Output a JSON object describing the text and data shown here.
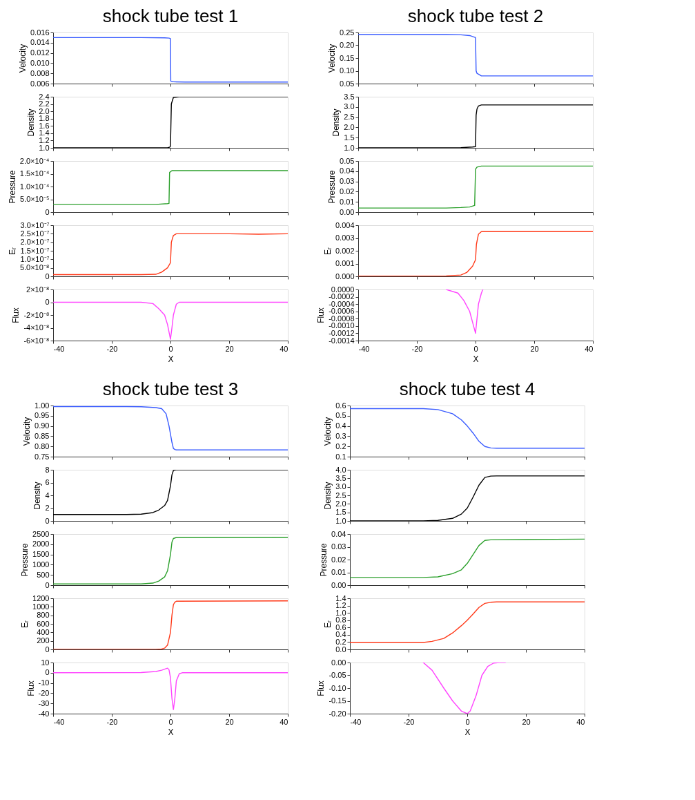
{
  "chart_data": [
    {
      "type": "line",
      "title": "shock tube test 1",
      "ylabel": "Velocity",
      "x": [
        -40,
        -10,
        -2,
        -0.5,
        0,
        0.1,
        1,
        5,
        40
      ],
      "series": [
        {
          "color": "#3a5cff",
          "values": [
            0.015,
            0.015,
            0.01495,
            0.0149,
            0.0148,
            0.0065,
            0.00635,
            0.0063,
            0.0063
          ]
        }
      ],
      "xlim": [
        -40,
        40
      ],
      "xticks": [
        -40,
        -20,
        0,
        20,
        40
      ],
      "ylim": [
        0.006,
        0.016
      ],
      "yticks": [
        0.006,
        0.008,
        {
          "value": 0.01,
          "label": "0.010"
        },
        0.012,
        0.014,
        0.016
      ],
      "tick_labels": "y"
    },
    {
      "type": "line",
      "ylabel": "Density",
      "x": [
        -40,
        -1,
        -0.2,
        0,
        0.3,
        1,
        3,
        40
      ],
      "series": [
        {
          "color": "#000000",
          "values": [
            1.0,
            1.0,
            1.02,
            1.05,
            2.2,
            2.38,
            2.4,
            2.4
          ]
        }
      ],
      "xlim": [
        -40,
        40
      ],
      "xticks": [
        -40,
        -20,
        0,
        20,
        40
      ],
      "ylim": [
        1.0,
        2.4
      ],
      "yticks": [
        {
          "value": 1.0,
          "label": "1.0"
        },
        1.2,
        1.4,
        1.6,
        1.8,
        {
          "value": 2.0,
          "label": "2.0"
        },
        2.2,
        2.4
      ],
      "tick_labels": "y"
    },
    {
      "type": "line",
      "ylabel": "Pressure",
      "x": [
        -40,
        -5,
        -1,
        -0.5,
        -0.3,
        0.5,
        40
      ],
      "series": [
        {
          "color": "#2ca02c",
          "values": [
            3e-05,
            3e-05,
            3.3e-05,
            3.4e-05,
            0.000155,
            0.000162,
            0.000162
          ]
        }
      ],
      "xlim": [
        -40,
        40
      ],
      "xticks": [
        -40,
        -20,
        0,
        20,
        40
      ],
      "ylim": [
        0,
        0.0002
      ],
      "yticks": [
        0,
        {
          "value": 5e-05,
          "label": "5.0×10⁻⁵"
        },
        {
          "value": 0.0001,
          "label": "1.0×10⁻⁴"
        },
        {
          "value": 0.00015,
          "label": "1.5×10⁻⁴"
        },
        {
          "value": 0.0002,
          "label": "2.0×10⁻⁴"
        }
      ],
      "tick_labels": "y"
    },
    {
      "type": "line",
      "ylabel": "Eᵣ",
      "x": [
        -40,
        -10,
        -5,
        -3,
        -1,
        0,
        0.3,
        1,
        2,
        20,
        30,
        40
      ],
      "series": [
        {
          "color": "#ff3a1a",
          "values": [
            1e-08,
            1e-08,
            1.2e-08,
            2.5e-08,
            5e-08,
            8e-08,
            2e-07,
            2.4e-07,
            2.5e-07,
            2.5e-07,
            2.47e-07,
            2.5e-07
          ]
        }
      ],
      "xlim": [
        -40,
        40
      ],
      "xticks": [
        -40,
        -20,
        0,
        20,
        40
      ],
      "ylim": [
        0,
        3e-07
      ],
      "yticks": [
        0,
        {
          "value": 5e-08,
          "label": "5.0×10⁻⁸"
        },
        {
          "value": 1e-07,
          "label": "1.0×10⁻⁷"
        },
        {
          "value": 1.5e-07,
          "label": "1.5×10⁻⁷"
        },
        {
          "value": 2e-07,
          "label": "2.0×10⁻⁷"
        },
        {
          "value": 2.5e-07,
          "label": "2.5×10⁻⁷"
        },
        {
          "value": 3e-07,
          "label": "3.0×10⁻⁷"
        }
      ],
      "tick_labels": "y"
    },
    {
      "type": "line",
      "ylabel": "Flux",
      "xlabel": "X",
      "x": [
        -40,
        -10,
        -6,
        -4,
        -2,
        -1,
        0,
        0.5,
        1,
        2,
        3,
        40
      ],
      "series": [
        {
          "color": "#ff44ff",
          "values": [
            0,
            0,
            -2e-09,
            -1e-08,
            -2e-08,
            -3.5e-08,
            -5.8e-08,
            -4e-08,
            -2e-08,
            -3e-09,
            0,
            0
          ]
        }
      ],
      "xlim": [
        -40,
        40
      ],
      "xticks": [
        -40,
        -20,
        0,
        20,
        40
      ],
      "ylim": [
        -6e-08,
        2e-08
      ],
      "yticks": [
        {
          "value": -6e-08,
          "label": "-6×10⁻⁸"
        },
        {
          "value": -4e-08,
          "label": "-4×10⁻⁸"
        },
        {
          "value": -2e-08,
          "label": "-2×10⁻⁸"
        },
        0,
        {
          "value": 2e-08,
          "label": "2×10⁻⁸"
        }
      ]
    },
    {
      "type": "line",
      "title": "shock tube test 2",
      "ylabel": "Velocity",
      "x": [
        -40,
        -10,
        -5,
        -2,
        0,
        0.2,
        0.5,
        2,
        40
      ],
      "series": [
        {
          "color": "#3a5cff",
          "values": [
            0.242,
            0.242,
            0.241,
            0.238,
            0.23,
            0.1,
            0.09,
            0.08,
            0.08
          ]
        }
      ],
      "xlim": [
        -40,
        40
      ],
      "xticks": [
        -40,
        -20,
        0,
        20,
        40
      ],
      "ylim": [
        0.05,
        0.25
      ],
      "yticks": [
        0.05,
        {
          "value": 0.1,
          "label": "0.10"
        },
        0.15,
        {
          "value": 0.2,
          "label": "0.20"
        },
        0.25
      ],
      "tick_labels": "y"
    },
    {
      "type": "line",
      "ylabel": "Density",
      "x": [
        -40,
        -10,
        -5,
        -1,
        0,
        0.2,
        0.5,
        1,
        2,
        40
      ],
      "series": [
        {
          "color": "#000000",
          "values": [
            1.0,
            1.0,
            1.01,
            1.04,
            1.06,
            2.6,
            2.9,
            3.05,
            3.1,
            3.1
          ]
        }
      ],
      "xlim": [
        -40,
        40
      ],
      "xticks": [
        -40,
        -20,
        0,
        20,
        40
      ],
      "ylim": [
        1.0,
        3.5
      ],
      "yticks": [
        {
          "value": 1.0,
          "label": "1.0"
        },
        1.5,
        {
          "value": 2.0,
          "label": "2.0"
        },
        2.5,
        {
          "value": 3.0,
          "label": "3.0"
        },
        3.5
      ],
      "tick_labels": "y"
    },
    {
      "type": "line",
      "ylabel": "Pressure",
      "x": [
        -40,
        -10,
        -5,
        -2,
        -0.3,
        0,
        0.5,
        2,
        40
      ],
      "series": [
        {
          "color": "#2ca02c",
          "values": [
            0.004,
            0.004,
            0.0045,
            0.005,
            0.0065,
            0.042,
            0.044,
            0.045,
            0.045
          ]
        }
      ],
      "xlim": [
        -40,
        40
      ],
      "xticks": [
        -40,
        -20,
        0,
        20,
        40
      ],
      "ylim": [
        0,
        0.05
      ],
      "yticks": [
        {
          "value": 0,
          "label": "0.00"
        },
        0.01,
        0.02,
        0.03,
        0.04,
        0.05
      ],
      "tick_labels": "y"
    },
    {
      "type": "line",
      "ylabel": "Eᵣ",
      "x": [
        -40,
        -10,
        -5,
        -3,
        -1,
        0,
        0.3,
        1,
        2,
        40
      ],
      "series": [
        {
          "color": "#ff3a1a",
          "values": [
            2e-05,
            3e-05,
            0.0001,
            0.0003,
            0.0008,
            0.0013,
            0.0025,
            0.0033,
            0.0035,
            0.0035
          ]
        }
      ],
      "xlim": [
        -40,
        40
      ],
      "xticks": [
        -40,
        -20,
        0,
        20,
        40
      ],
      "ylim": [
        0,
        0.004
      ],
      "yticks": [
        {
          "value": 0,
          "label": "0.000"
        },
        0.001,
        0.002,
        0.003,
        0.004
      ],
      "tick_labels": "y"
    },
    {
      "type": "line",
      "ylabel": "Flux",
      "xlabel": "X",
      "x": [
        -10,
        -6,
        -4,
        -2,
        -1,
        0,
        0.5,
        1,
        2,
        2.5
      ],
      "series": [
        {
          "color": "#ff44ff",
          "values": [
            0,
            -0.0001,
            -0.0003,
            -0.0006,
            -0.0009,
            -0.0012,
            -0.0008,
            -0.0004,
            -0.0001,
            0
          ]
        }
      ],
      "xlim": [
        -40,
        40
      ],
      "xticks": [
        -40,
        -20,
        0,
        20,
        40
      ],
      "ylim": [
        -0.0014,
        0
      ],
      "yticks": [
        {
          "value": -0.0014,
          "label": "-0.0014"
        },
        {
          "value": -0.0012,
          "label": "-0.0012"
        },
        {
          "value": -0.001,
          "label": "-0.0010"
        },
        {
          "value": -0.0008,
          "label": "-0.0008"
        },
        {
          "value": -0.0006,
          "label": "-0.0006"
        },
        {
          "value": -0.0004,
          "label": "-0.0004"
        },
        {
          "value": -0.0002,
          "label": "-0.0002"
        },
        {
          "value": 0,
          "label": "0.0000"
        }
      ]
    },
    {
      "type": "line",
      "title": "shock tube test 3",
      "ylabel": "Velocity",
      "x": [
        -40,
        -15,
        -10,
        -5,
        -3,
        -1.5,
        -0.5,
        0,
        0.5,
        1,
        1.5,
        2,
        40
      ],
      "series": [
        {
          "color": "#3a5cff",
          "values": [
            0.995,
            0.995,
            0.994,
            0.99,
            0.985,
            0.96,
            0.9,
            0.86,
            0.82,
            0.79,
            0.785,
            0.783,
            0.783
          ]
        }
      ],
      "xlim": [
        -40,
        40
      ],
      "xticks": [
        -40,
        -20,
        0,
        20,
        40
      ],
      "ylim": [
        0.75,
        1.0
      ],
      "yticks": [
        0.75,
        {
          "value": 0.8,
          "label": "0.80"
        },
        0.85,
        {
          "value": 0.9,
          "label": "0.90"
        },
        0.95,
        {
          "value": 1.0,
          "label": "1.00"
        }
      ],
      "tick_labels": "y"
    },
    {
      "type": "line",
      "ylabel": "Density",
      "x": [
        -40,
        -15,
        -10,
        -6,
        -4,
        -2,
        -1,
        0,
        0.5,
        1,
        2,
        40
      ],
      "series": [
        {
          "color": "#000000",
          "values": [
            1.0,
            1.0,
            1.05,
            1.3,
            1.7,
            2.4,
            3.2,
            5.5,
            7.2,
            7.9,
            8.0,
            8.0
          ]
        }
      ],
      "xlim": [
        -40,
        40
      ],
      "xticks": [
        -40,
        -20,
        0,
        20,
        40
      ],
      "ylim": [
        0,
        8
      ],
      "yticks": [
        0,
        2,
        4,
        6,
        8
      ],
      "tick_labels": "y"
    },
    {
      "type": "line",
      "ylabel": "Pressure",
      "x": [
        -40,
        -10,
        -6,
        -4,
        -2,
        -1,
        0,
        0.5,
        1,
        2,
        40
      ],
      "series": [
        {
          "color": "#2ca02c",
          "values": [
            60,
            60,
            100,
            200,
            400,
            700,
            1500,
            2100,
            2280,
            2330,
            2340
          ]
        }
      ],
      "xlim": [
        -40,
        40
      ],
      "xticks": [
        -40,
        -20,
        0,
        20,
        40
      ],
      "ylim": [
        0,
        2500
      ],
      "yticks": [
        0,
        500,
        1000,
        1500,
        2000,
        2500
      ],
      "tick_labels": "y"
    },
    {
      "type": "line",
      "ylabel": "Eᵣ",
      "x": [
        -40,
        -5,
        -3,
        -2,
        -1,
        0,
        0.5,
        1,
        1.5,
        2,
        40
      ],
      "series": [
        {
          "color": "#ff3a1a",
          "values": [
            0,
            0,
            10,
            30,
            100,
            400,
            800,
            1050,
            1110,
            1130,
            1140
          ]
        }
      ],
      "xlim": [
        -40,
        40
      ],
      "xticks": [
        -40,
        -20,
        0,
        20,
        40
      ],
      "ylim": [
        0,
        1200
      ],
      "yticks": [
        0,
        200,
        400,
        600,
        800,
        1000,
        1200
      ],
      "tick_labels": "y"
    },
    {
      "type": "line",
      "ylabel": "Flux",
      "xlabel": "X",
      "x": [
        -40,
        -10,
        -5,
        -3,
        -1,
        -0.5,
        0,
        0.5,
        1,
        1.5,
        2,
        3,
        4,
        40
      ],
      "series": [
        {
          "color": "#ff44ff",
          "values": [
            0,
            0.2,
            1.2,
            2.5,
            4.5,
            3,
            -5,
            -25,
            -36,
            -25,
            -8,
            -1,
            0,
            0
          ]
        }
      ],
      "xlim": [
        -40,
        40
      ],
      "xticks": [
        -40,
        -20,
        0,
        20,
        40
      ],
      "ylim": [
        -40,
        10
      ],
      "yticks": [
        -40,
        -30,
        -20,
        -10,
        0,
        10
      ]
    },
    {
      "type": "line",
      "title": "shock tube test 4",
      "ylabel": "Velocity",
      "x": [
        -40,
        -15,
        -10,
        -5,
        -2,
        0,
        2,
        4,
        6,
        8,
        10,
        40
      ],
      "series": [
        {
          "color": "#3a5cff",
          "values": [
            0.57,
            0.57,
            0.56,
            0.52,
            0.46,
            0.4,
            0.33,
            0.25,
            0.2,
            0.185,
            0.183,
            0.183
          ]
        }
      ],
      "xlim": [
        -40,
        40
      ],
      "xticks": [
        -40,
        -20,
        0,
        20,
        40
      ],
      "ylim": [
        0.1,
        0.6
      ],
      "yticks": [
        0.1,
        0.2,
        0.3,
        0.4,
        0.5,
        0.6
      ],
      "tick_labels": "y"
    },
    {
      "type": "line",
      "ylabel": "Density",
      "x": [
        -40,
        -15,
        -10,
        -5,
        -2,
        0,
        2,
        4,
        6,
        8,
        10,
        40
      ],
      "series": [
        {
          "color": "#000000",
          "values": [
            1.0,
            1.0,
            1.03,
            1.15,
            1.4,
            1.75,
            2.4,
            3.1,
            3.55,
            3.63,
            3.64,
            3.64
          ]
        }
      ],
      "xlim": [
        -40,
        40
      ],
      "xticks": [
        -40,
        -20,
        0,
        20,
        40
      ],
      "ylim": [
        1.0,
        4.0
      ],
      "yticks": [
        {
          "value": 1.0,
          "label": "1.0"
        },
        1.5,
        {
          "value": 2.0,
          "label": "2.0"
        },
        2.5,
        {
          "value": 3.0,
          "label": "3.0"
        },
        3.5,
        {
          "value": 4.0,
          "label": "4.0"
        }
      ],
      "tick_labels": "y"
    },
    {
      "type": "line",
      "ylabel": "Pressure",
      "x": [
        -40,
        -15,
        -10,
        -5,
        -2,
        0,
        2,
        4,
        6,
        8,
        40
      ],
      "series": [
        {
          "color": "#2ca02c",
          "values": [
            0.006,
            0.006,
            0.0065,
            0.009,
            0.012,
            0.017,
            0.024,
            0.031,
            0.035,
            0.0355,
            0.036
          ]
        }
      ],
      "xlim": [
        -40,
        40
      ],
      "xticks": [
        -40,
        -20,
        0,
        20,
        40
      ],
      "ylim": [
        0,
        0.04
      ],
      "yticks": [
        {
          "value": 0,
          "label": "0.00"
        },
        0.01,
        0.02,
        0.03,
        0.04
      ],
      "tick_labels": "y"
    },
    {
      "type": "line",
      "ylabel": "Eᵣ",
      "x": [
        -40,
        -15,
        -12,
        -8,
        -5,
        -2,
        0,
        2,
        4,
        6,
        8,
        10,
        40
      ],
      "series": [
        {
          "color": "#ff3a1a",
          "values": [
            0.19,
            0.19,
            0.22,
            0.3,
            0.45,
            0.65,
            0.8,
            0.97,
            1.15,
            1.26,
            1.29,
            1.3,
            1.3
          ]
        }
      ],
      "xlim": [
        -40,
        40
      ],
      "xticks": [
        -40,
        -20,
        0,
        20,
        40
      ],
      "ylim": [
        0,
        1.4
      ],
      "yticks": [
        {
          "value": 0,
          "label": "0.0"
        },
        0.2,
        0.4,
        0.6,
        0.8,
        {
          "value": 1.0,
          "label": "1.0"
        },
        1.2,
        1.4
      ],
      "tick_labels": "y"
    },
    {
      "type": "line",
      "ylabel": "Flux",
      "xlabel": "X",
      "x": [
        -15,
        -12,
        -8,
        -5,
        -2,
        0,
        1,
        3,
        5,
        7,
        9,
        11,
        13
      ],
      "series": [
        {
          "color": "#ff44ff",
          "values": [
            0,
            -0.03,
            -0.1,
            -0.15,
            -0.19,
            -0.2,
            -0.19,
            -0.13,
            -0.05,
            -0.015,
            -0.002,
            0,
            0
          ]
        }
      ],
      "xlim": [
        -40,
        40
      ],
      "xticks": [
        -40,
        -20,
        0,
        20,
        40
      ],
      "ylim": [
        -0.2,
        0
      ],
      "yticks": [
        {
          "value": -0.2,
          "label": "-0.20"
        },
        {
          "value": -0.15,
          "label": "-0.15"
        },
        {
          "value": -0.1,
          "label": "-0.10"
        },
        {
          "value": -0.05,
          "label": "-0.05"
        },
        {
          "value": 0,
          "label": "0.00"
        }
      ]
    }
  ]
}
